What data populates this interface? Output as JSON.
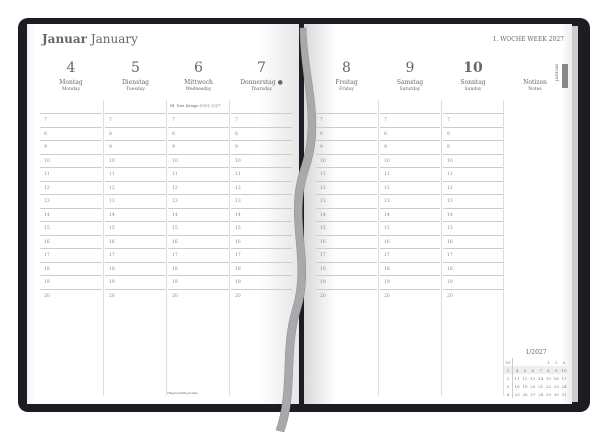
{
  "header": {
    "month_de": "Januar",
    "month_en": "January",
    "week": "1. WOCHE WEEK 2027"
  },
  "days": [
    {
      "num": "4",
      "de": "Montag",
      "en": "Monday"
    },
    {
      "num": "5",
      "de": "Dienstag",
      "en": "Tuesday"
    },
    {
      "num": "6",
      "de": "Mittwoch",
      "en": "Wednesday",
      "holiday": "Hl. Drei Könige ⓑⓦⓢ ⓢⓢ*"
    },
    {
      "num": "7",
      "de": "Donnerstag ●",
      "en": "Thursday"
    },
    {
      "num": "8",
      "de": "Freitag",
      "en": "Friday"
    },
    {
      "num": "9",
      "de": "Samstag",
      "en": "Saturday"
    },
    {
      "num": "10",
      "de": "Sonntag",
      "en": "Sunday"
    }
  ],
  "notes": {
    "de": "Notizen",
    "en": "Notes"
  },
  "hours": [
    "7",
    "8",
    "9",
    "10",
    "11",
    "12",
    "13",
    "14",
    "15",
    "16",
    "17",
    "18",
    "19",
    "20"
  ],
  "tab": "JANUAR",
  "footnote": "*Regional/Regionale",
  "mini_calendar": {
    "title": "1/2027",
    "rows": [
      [
        "53",
        "",
        "",
        "",
        "",
        "1",
        "2",
        "3"
      ],
      [
        "1",
        "4",
        "5",
        "6",
        "7",
        "8",
        "9",
        "10"
      ],
      [
        "2",
        "11",
        "12",
        "13",
        "14",
        "15",
        "16",
        "17"
      ],
      [
        "3",
        "18",
        "19",
        "20",
        "21",
        "22",
        "23",
        "24"
      ],
      [
        "4",
        "25",
        "26",
        "27",
        "28",
        "29",
        "30",
        "31"
      ]
    ]
  }
}
